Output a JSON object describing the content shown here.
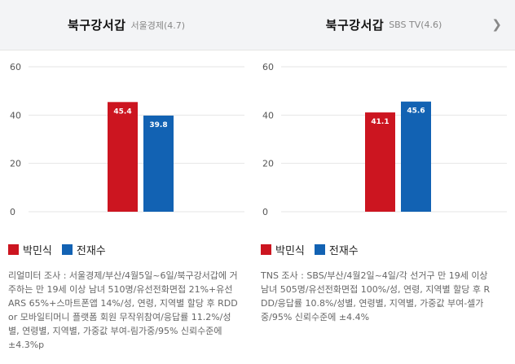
{
  "colors": {
    "candidate1": "#cc1520",
    "candidate2": "#1262b3",
    "grid": "#e6e6e6",
    "header_bg": "#f3f4f6"
  },
  "legend": [
    "박민식",
    "전재수"
  ],
  "panels": [
    {
      "title": "북구강서갑",
      "source": "서울경제(4.7)",
      "note": "리얼미터 조사 : 서울경제/부산/4월5일~6일/북구강서갑에 거주하는 만 19세 이상 남녀 510명/유선전화면접 21%+유선ARS 65%+스마트폰앱 14%/성, 연령, 지역별 할당 후 RDD or 모바일티머니 플랫폼 회원 무작위참여/응답률 11.2%/성별, 연령별, 지역별, 가중값 부여-림가중/95% 신뢰수준에 ±4.3%p"
    },
    {
      "title": "북구강서갑",
      "source": "SBS TV(4.6)",
      "chevron_icon": "chevron-right-icon",
      "note": "TNS 조사 : SBS/부산/4월2일~4일/각 선거구 만 19세 이상 남녀 505명/유선전화면접 100%/성, 연령, 지역별 할당 후 RDD/응답률 10.8%/성별, 연령별, 지역별, 가중값 부여-셀가중/95% 신뢰수준에 ±4.4%"
    }
  ],
  "chart_data": [
    {
      "type": "bar",
      "categories": [
        "박민식",
        "전재수"
      ],
      "values": [
        45.4,
        39.8
      ],
      "ylim": [
        0,
        60
      ],
      "yticks": [
        0,
        20,
        40,
        60
      ],
      "grid": true,
      "legend_position": "bottom-left"
    },
    {
      "type": "bar",
      "categories": [
        "박민식",
        "전재수"
      ],
      "values": [
        41.1,
        45.6
      ],
      "ylim": [
        0,
        60
      ],
      "yticks": [
        0,
        20,
        40,
        60
      ],
      "grid": true,
      "legend_position": "bottom-left"
    }
  ]
}
